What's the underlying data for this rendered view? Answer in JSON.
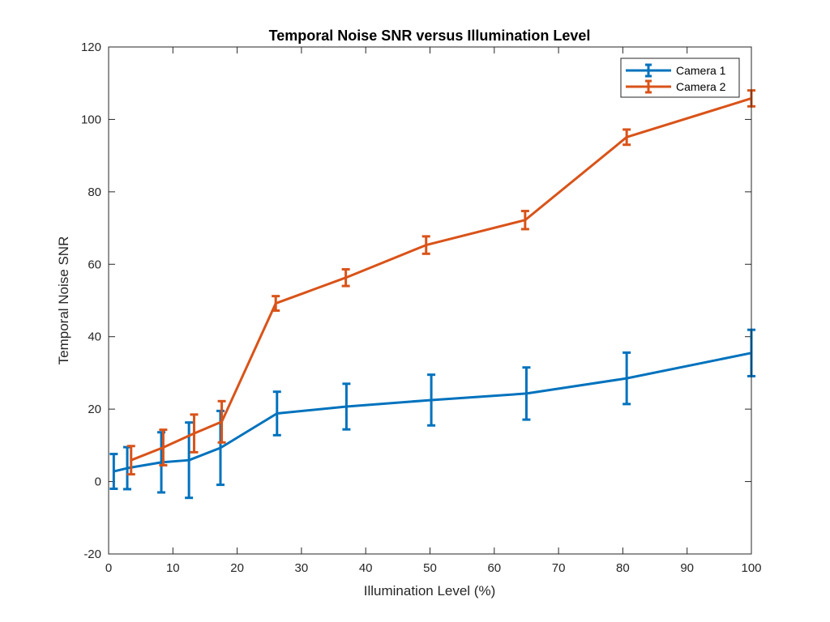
{
  "chart_data": {
    "type": "line",
    "title": "Temporal Noise SNR versus Illumination Level",
    "xlabel": "Illumination Level (%)",
    "ylabel": "Temporal Noise SNR",
    "xlim": [
      0,
      100
    ],
    "ylim": [
      -20,
      120
    ],
    "xticks": [
      "0",
      "10",
      "20",
      "30",
      "40",
      "50",
      "60",
      "70",
      "80",
      "90",
      "100"
    ],
    "yticks": [
      "-20",
      "0",
      "20",
      "40",
      "60",
      "80",
      "100",
      "120"
    ],
    "grid": false,
    "legend_position": "top-right",
    "error_bars": true,
    "series": [
      {
        "name": "Camera 1",
        "color": "#0072BD",
        "x": [
          0.8,
          2.9,
          8.2,
          12.5,
          17.4,
          26.2,
          37.0,
          50.2,
          65.0,
          80.6,
          100.0
        ],
        "y": [
          2.8,
          3.7,
          5.3,
          5.9,
          9.3,
          18.8,
          20.7,
          22.5,
          24.3,
          28.5,
          35.5
        ],
        "err": [
          4.8,
          5.8,
          8.3,
          10.4,
          10.2,
          6.0,
          6.3,
          7.0,
          7.2,
          7.1,
          6.4
        ]
      },
      {
        "name": "Camera 2",
        "color": "#D95319",
        "x": [
          3.5,
          8.5,
          13.3,
          17.6,
          26.0,
          36.9,
          49.4,
          64.8,
          80.6,
          100.0
        ],
        "y": [
          5.9,
          9.4,
          13.3,
          16.5,
          49.2,
          56.3,
          65.3,
          72.2,
          95.1,
          105.8
        ],
        "err": [
          3.9,
          4.9,
          5.2,
          5.7,
          2.0,
          2.3,
          2.4,
          2.5,
          2.1,
          2.2
        ]
      }
    ]
  }
}
